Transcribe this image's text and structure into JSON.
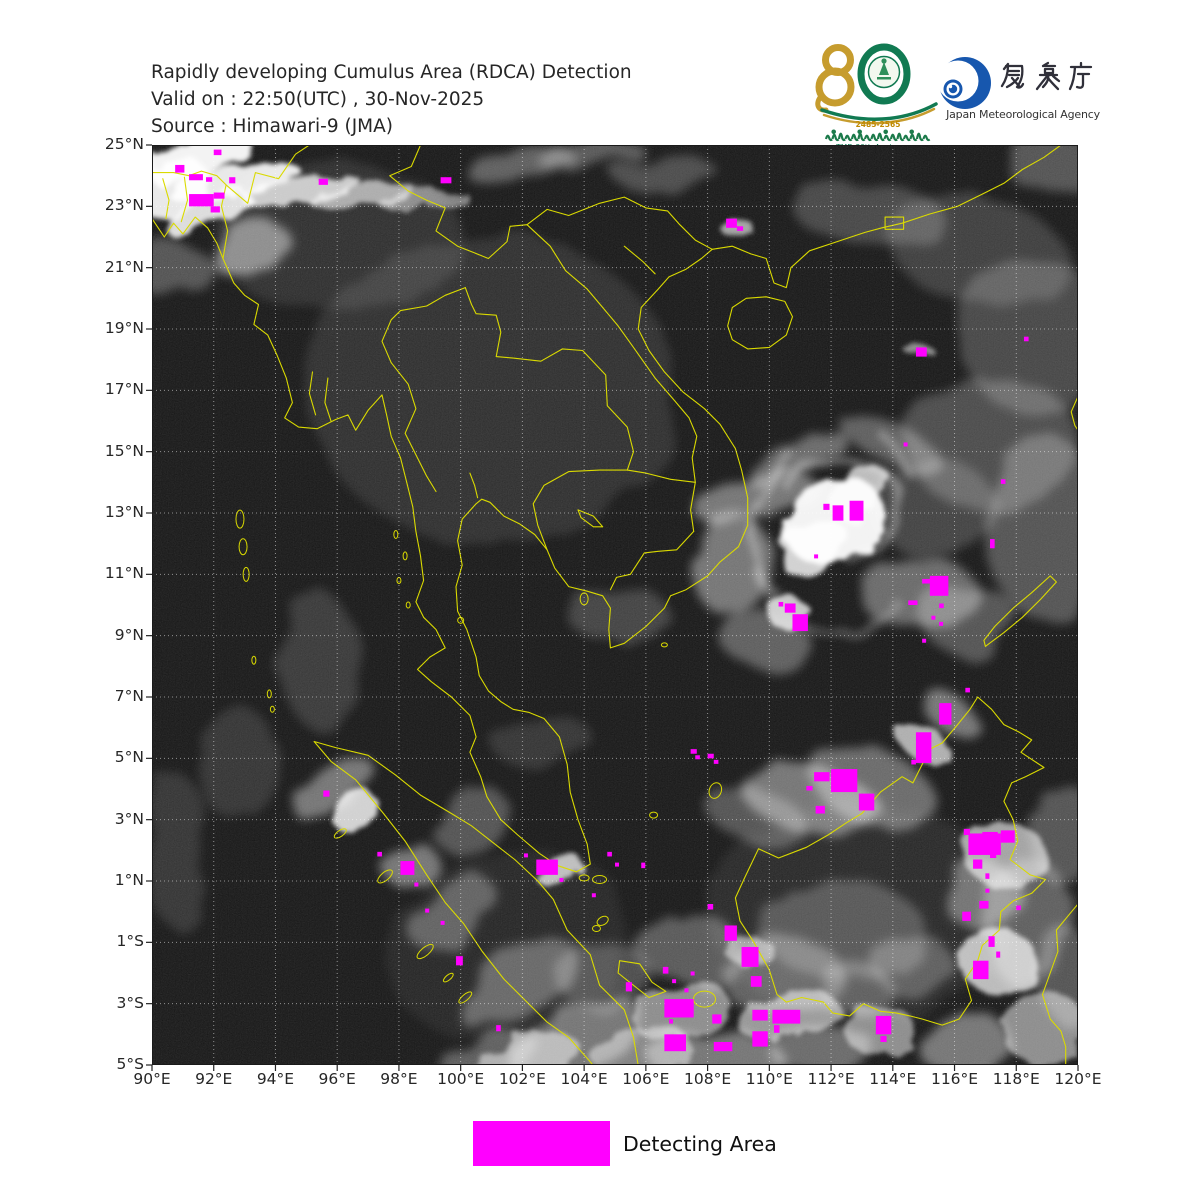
{
  "header": {
    "title_line1": "Rapidly developing Cumulus Area (RDCA) Detection",
    "title_line2": "Valid on : 22:50(UTC) , 30-Nov-2025",
    "title_line3": "Source : Himawari-9 (JMA)",
    "tmd_logo": {
      "number": "80",
      "years": "2485-2565",
      "thai_name": "กรมอุตุนิยมวิทยา",
      "anniversary": "TMD 80th Anniversary"
    },
    "jma_logo": {
      "kanji": "気象庁",
      "agency_name": "Japan Meteorological Agency"
    }
  },
  "legend": {
    "label": "Detecting Area",
    "swatch_color": "#FF00FF"
  },
  "chart_data": {
    "type": "map-overlay",
    "map_description": "Himawari-9 grayscale satellite image of Southeast Asia with magenta RDCA detection areas, yellow coastlines/borders and dotted graticule",
    "lon_range": [
      90,
      120
    ],
    "lat_range": [
      -5,
      25
    ],
    "x_tick_labels": [
      "90°E",
      "92°E",
      "94°E",
      "96°E",
      "98°E",
      "100°E",
      "102°E",
      "104°E",
      "106°E",
      "108°E",
      "110°E",
      "112°E",
      "114°E",
      "116°E",
      "118°E",
      "120°E"
    ],
    "x_tick_values": [
      90,
      92,
      94,
      96,
      98,
      100,
      102,
      104,
      106,
      108,
      110,
      112,
      114,
      116,
      118,
      120
    ],
    "y_tick_labels": [
      "25°N",
      "23°N",
      "21°N",
      "19°N",
      "17°N",
      "15°N",
      "13°N",
      "11°N",
      "9°N",
      "7°N",
      "5°N",
      "3°N",
      "1°N",
      "1°S",
      "3°S",
      "5°S"
    ],
    "y_tick_values": [
      25,
      23,
      21,
      19,
      17,
      15,
      13,
      11,
      9,
      7,
      5,
      3,
      1,
      -1,
      -3,
      -5
    ],
    "grid": true,
    "detection_color": "#FF00FF",
    "coastline_color": "#DADA00",
    "detections_lon_lat_w_h": [
      [
        90.75,
        24.35,
        0.3,
        0.25
      ],
      [
        91.2,
        24.05,
        0.45,
        0.2
      ],
      [
        91.75,
        23.95,
        0.2,
        0.15
      ],
      [
        92.0,
        24.85,
        0.25,
        0.18
      ],
      [
        92.5,
        23.95,
        0.2,
        0.2
      ],
      [
        91.2,
        23.4,
        0.8,
        0.4
      ],
      [
        92.0,
        23.45,
        0.35,
        0.2
      ],
      [
        91.9,
        23.0,
        0.3,
        0.2
      ],
      [
        95.4,
        23.9,
        0.3,
        0.2
      ],
      [
        99.35,
        23.95,
        0.35,
        0.2
      ],
      [
        108.6,
        22.6,
        0.35,
        0.3
      ],
      [
        108.95,
        22.35,
        0.2,
        0.15
      ],
      [
        114.75,
        18.4,
        0.35,
        0.3
      ],
      [
        118.25,
        18.75,
        0.15,
        0.15
      ],
      [
        117.5,
        14.1,
        0.15,
        0.15
      ],
      [
        114.35,
        15.3,
        0.12,
        0.12
      ],
      [
        111.75,
        13.3,
        0.2,
        0.2
      ],
      [
        112.05,
        13.25,
        0.35,
        0.5
      ],
      [
        112.6,
        13.4,
        0.45,
        0.65
      ],
      [
        111.45,
        11.65,
        0.12,
        0.12
      ],
      [
        117.15,
        12.15,
        0.15,
        0.3
      ],
      [
        110.3,
        10.1,
        0.15,
        0.15
      ],
      [
        110.5,
        10.05,
        0.35,
        0.3
      ],
      [
        110.75,
        9.7,
        0.5,
        0.55
      ],
      [
        114.5,
        10.15,
        0.3,
        0.15
      ],
      [
        114.95,
        10.85,
        0.35,
        0.15
      ],
      [
        115.2,
        10.95,
        0.6,
        0.65
      ],
      [
        115.5,
        10.05,
        0.15,
        0.15
      ],
      [
        115.25,
        9.65,
        0.12,
        0.12
      ],
      [
        115.5,
        9.45,
        0.12,
        0.12
      ],
      [
        114.95,
        8.9,
        0.12,
        0.12
      ],
      [
        107.45,
        5.3,
        0.2,
        0.15
      ],
      [
        107.6,
        5.1,
        0.15,
        0.12
      ],
      [
        108.0,
        5.15,
        0.2,
        0.15
      ],
      [
        108.2,
        4.95,
        0.15,
        0.12
      ],
      [
        111.45,
        4.55,
        0.5,
        0.3
      ],
      [
        112.0,
        4.65,
        0.85,
        0.75
      ],
      [
        111.2,
        4.1,
        0.2,
        0.15
      ],
      [
        111.5,
        3.45,
        0.3,
        0.25
      ],
      [
        112.9,
        3.85,
        0.5,
        0.55
      ],
      [
        114.75,
        5.85,
        0.5,
        1.0
      ],
      [
        115.5,
        6.8,
        0.4,
        0.7
      ],
      [
        114.6,
        4.95,
        0.15,
        0.15
      ],
      [
        116.35,
        7.3,
        0.15,
        0.15
      ],
      [
        116.3,
        2.7,
        0.2,
        0.2
      ],
      [
        116.45,
        2.55,
        1.05,
        0.7
      ],
      [
        116.9,
        2.6,
        0.5,
        0.5
      ],
      [
        117.5,
        2.65,
        0.45,
        0.4
      ],
      [
        117.15,
        1.95,
        0.2,
        0.2
      ],
      [
        116.6,
        1.7,
        0.3,
        0.3
      ],
      [
        117.0,
        1.25,
        0.12,
        0.18
      ],
      [
        117.0,
        0.75,
        0.12,
        0.12
      ],
      [
        116.8,
        0.35,
        0.3,
        0.25
      ],
      [
        116.25,
        0.0,
        0.28,
        0.3
      ],
      [
        118.0,
        0.2,
        0.15,
        0.15
      ],
      [
        117.1,
        -0.8,
        0.2,
        0.35
      ],
      [
        117.35,
        -1.3,
        0.12,
        0.2
      ],
      [
        116.6,
        -1.6,
        0.5,
        0.6
      ],
      [
        108.0,
        0.25,
        0.18,
        0.18
      ],
      [
        108.55,
        -0.45,
        0.4,
        0.5
      ],
      [
        95.55,
        3.95,
        0.2,
        0.2
      ],
      [
        97.3,
        1.95,
        0.15,
        0.15
      ],
      [
        98.05,
        1.65,
        0.45,
        0.45
      ],
      [
        98.5,
        0.95,
        0.12,
        0.12
      ],
      [
        98.85,
        0.1,
        0.12,
        0.12
      ],
      [
        99.35,
        -0.3,
        0.12,
        0.12
      ],
      [
        99.85,
        -1.45,
        0.22,
        0.3
      ],
      [
        101.15,
        -3.7,
        0.15,
        0.2
      ],
      [
        102.05,
        1.9,
        0.12,
        0.12
      ],
      [
        102.45,
        1.7,
        0.7,
        0.5
      ],
      [
        103.2,
        1.1,
        0.12,
        0.12
      ],
      [
        104.25,
        0.6,
        0.12,
        0.12
      ],
      [
        104.75,
        1.95,
        0.15,
        0.15
      ],
      [
        105.85,
        1.6,
        0.12,
        0.18
      ],
      [
        105.0,
        1.6,
        0.12,
        0.12
      ],
      [
        105.35,
        -2.3,
        0.2,
        0.3
      ],
      [
        106.55,
        -1.8,
        0.18,
        0.22
      ],
      [
        106.85,
        -2.2,
        0.12,
        0.12
      ],
      [
        107.25,
        -2.5,
        0.12,
        0.12
      ],
      [
        107.45,
        -1.95,
        0.12,
        0.12
      ],
      [
        106.6,
        -2.85,
        0.95,
        0.6
      ],
      [
        106.75,
        -3.5,
        0.12,
        0.15
      ],
      [
        106.6,
        -4.0,
        0.7,
        0.55
      ],
      [
        108.15,
        -3.35,
        0.3,
        0.3
      ],
      [
        108.2,
        -4.25,
        0.6,
        0.3
      ],
      [
        109.1,
        -1.15,
        0.55,
        0.65
      ],
      [
        109.4,
        -2.1,
        0.35,
        0.35
      ],
      [
        109.45,
        -3.2,
        0.5,
        0.35
      ],
      [
        109.45,
        -3.9,
        0.5,
        0.5
      ],
      [
        110.1,
        -3.2,
        0.9,
        0.45
      ],
      [
        110.15,
        -3.7,
        0.18,
        0.25
      ],
      [
        113.45,
        -3.4,
        0.5,
        0.6
      ],
      [
        113.6,
        -4.05,
        0.2,
        0.2
      ]
    ]
  }
}
